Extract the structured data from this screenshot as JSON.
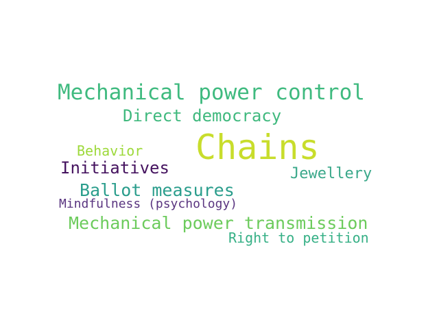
{
  "words": [
    {
      "text": "Mechanical power control",
      "color": "#3fba7f"
    },
    {
      "text": "Direct democracy",
      "color": "#40b97e"
    },
    {
      "text": "Chains",
      "color": "#c8dd2c"
    },
    {
      "text": "Behavior",
      "color": "#9dd93a"
    },
    {
      "text": "Initiatives",
      "color": "#45135f"
    },
    {
      "text": "Jewellery",
      "color": "#3aa88a"
    },
    {
      "text": "Ballot measures",
      "color": "#2a9d8c"
    },
    {
      "text": "Mindfulness (psychology)",
      "color": "#5a3580"
    },
    {
      "text": "Mechanical power transmission",
      "color": "#6ccb5c"
    },
    {
      "text": "Right to petition",
      "color": "#36b086"
    }
  ]
}
